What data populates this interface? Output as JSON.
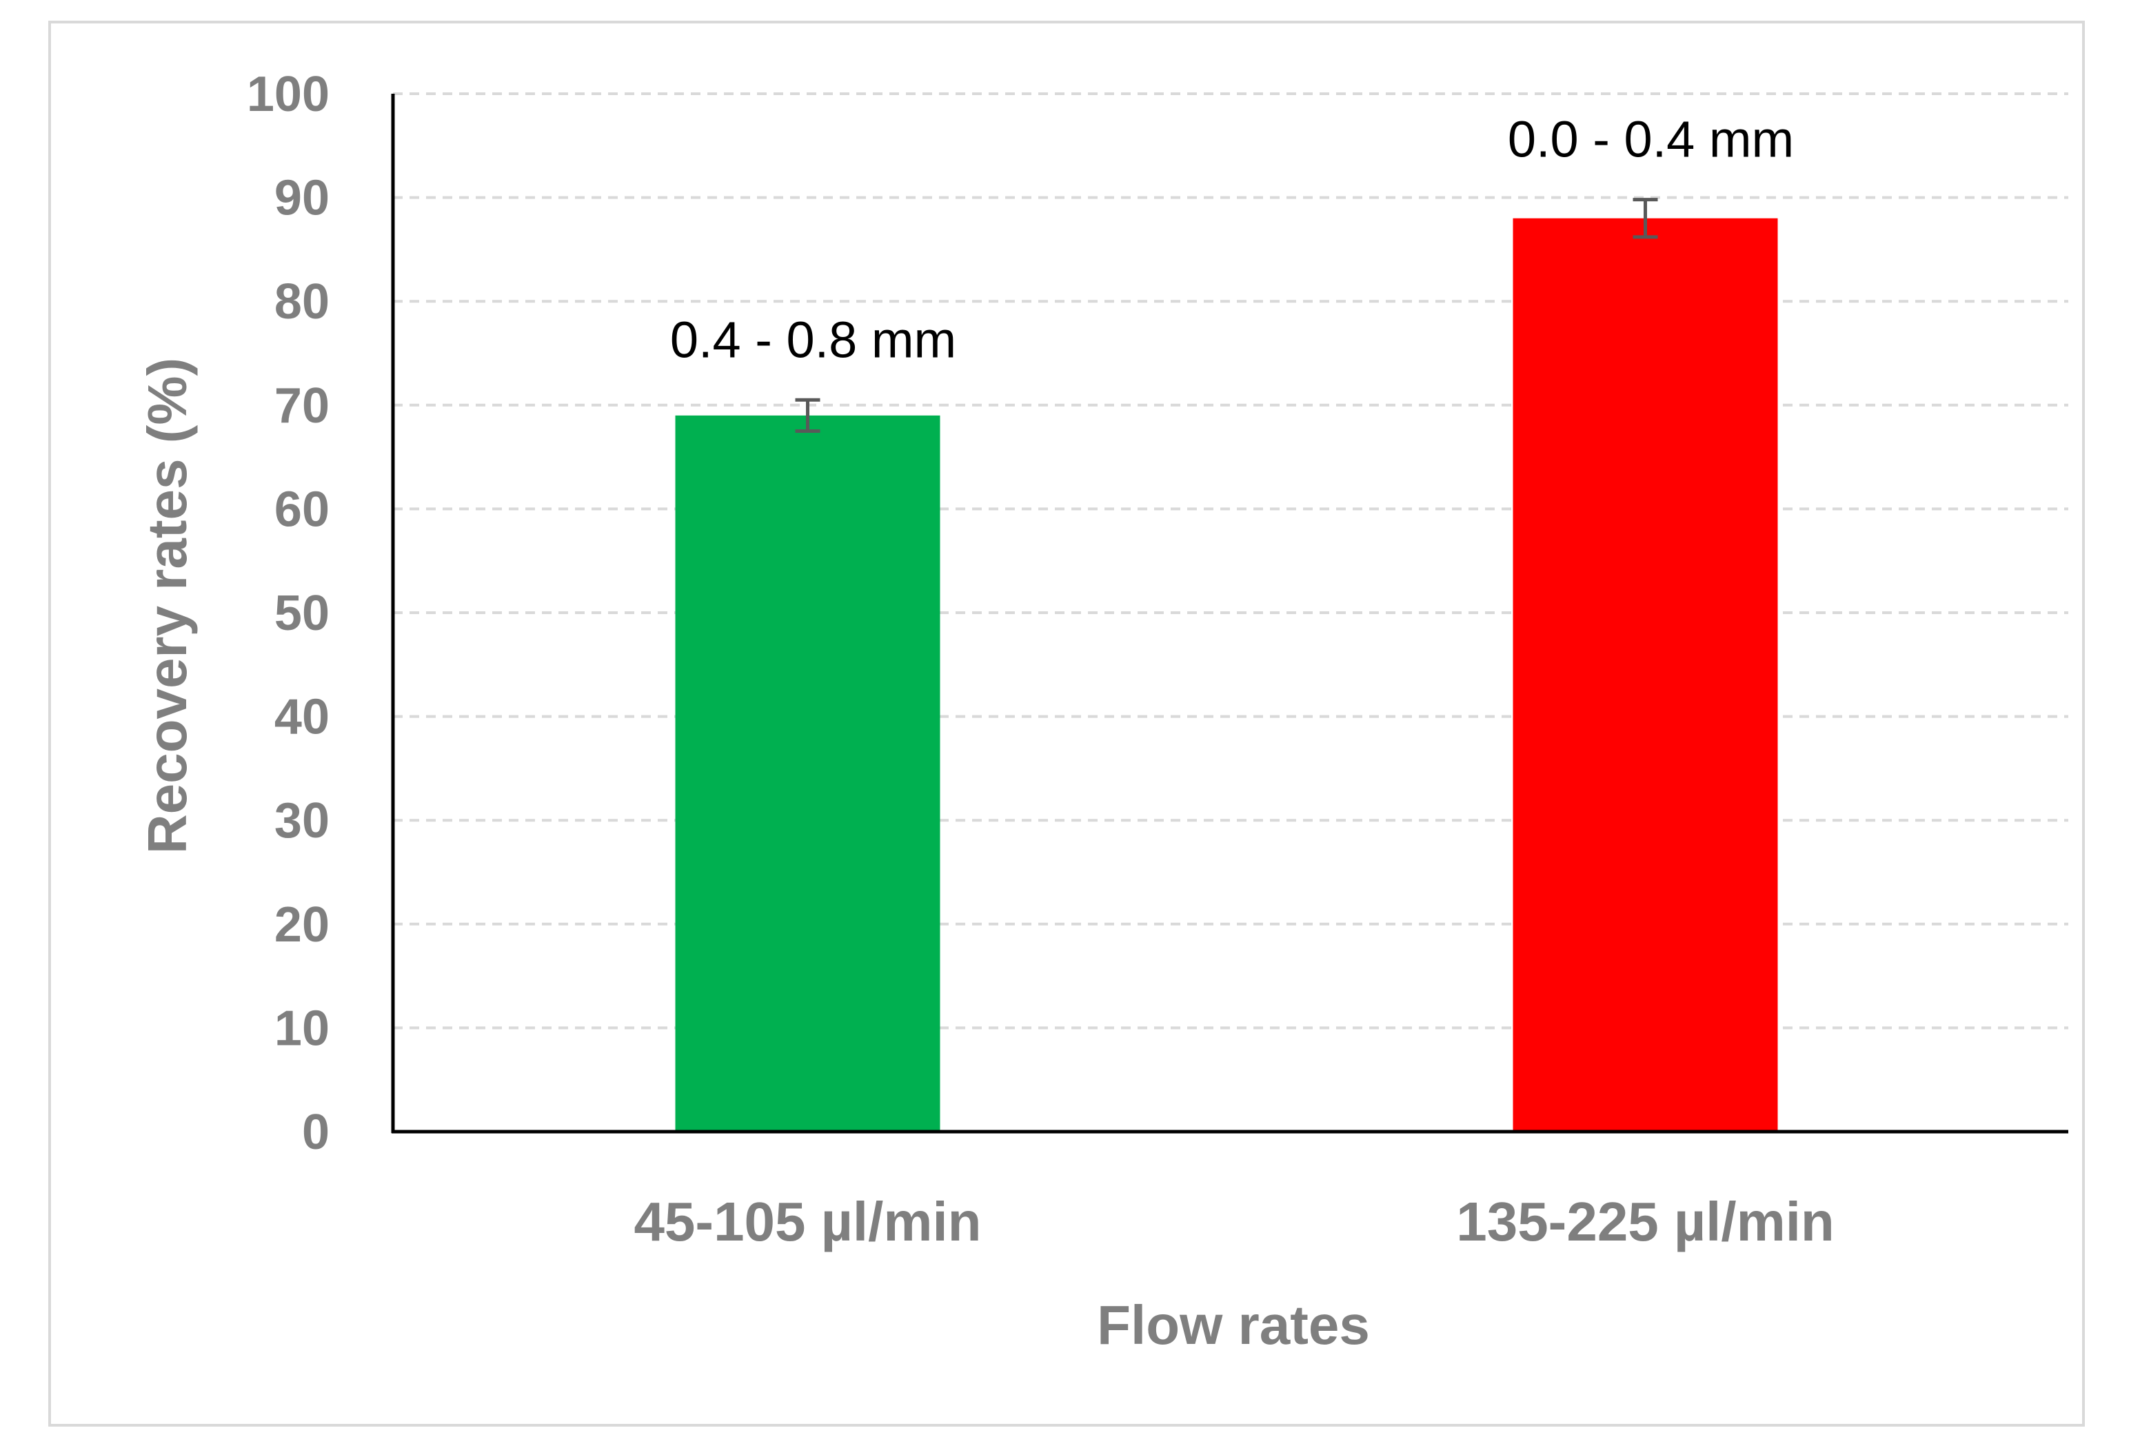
{
  "chart_data": {
    "type": "bar",
    "title": "",
    "xlabel": "Flow rates",
    "ylabel": "Recovery rates (%)",
    "ylim": [
      0,
      100
    ],
    "yticks": [
      0,
      10,
      20,
      30,
      40,
      50,
      60,
      70,
      80,
      90,
      100
    ],
    "grid": "horizontal-dashed",
    "categories": [
      "45-105  µl/min",
      "135-225  µl/min"
    ],
    "values": [
      69,
      88
    ],
    "error": [
      1.5,
      1.8
    ],
    "data_labels": [
      "0.4 - 0.8 mm",
      "0.0 - 0.4 mm"
    ],
    "colors": [
      "#00b050",
      "#ff0000"
    ],
    "error_bar_color": "#595959",
    "axis_text_color": "#7f7f7f"
  }
}
